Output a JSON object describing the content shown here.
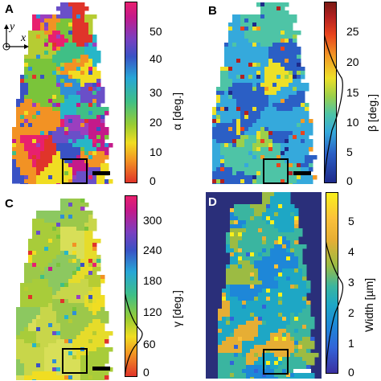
{
  "panels": [
    {
      "id": "A",
      "label": "A",
      "colorbar_label": "α [deg.]",
      "ticks": [
        "50",
        "40",
        "30",
        "20",
        "10",
        "0"
      ],
      "colormap": "hsv-cyclic",
      "has_histogram": false,
      "scalebar_color": "#000000"
    },
    {
      "id": "B",
      "label": "B",
      "colorbar_label": "β [deg.]",
      "ticks": [
        "25",
        "20",
        "15",
        "10",
        "5",
        "0"
      ],
      "colormap": "jet-like",
      "has_histogram": true,
      "scalebar_color": "#000000"
    },
    {
      "id": "C",
      "label": "C",
      "colorbar_label": "γ [deg.]",
      "ticks": [
        "300",
        "240",
        "180",
        "120",
        "60",
        "0"
      ],
      "colormap": "hsv-cyclic",
      "has_histogram": true,
      "scalebar_color": "#000000"
    },
    {
      "id": "D",
      "label": "D",
      "colorbar_label": "Width [µm]",
      "ticks": [
        "5",
        "4",
        "3",
        "2",
        "1",
        "0"
      ],
      "colormap": "parula",
      "has_histogram": true,
      "scalebar_color": "#ffffff"
    }
  ],
  "axis_indicator": {
    "y_label": "y",
    "x_label": "x"
  }
}
